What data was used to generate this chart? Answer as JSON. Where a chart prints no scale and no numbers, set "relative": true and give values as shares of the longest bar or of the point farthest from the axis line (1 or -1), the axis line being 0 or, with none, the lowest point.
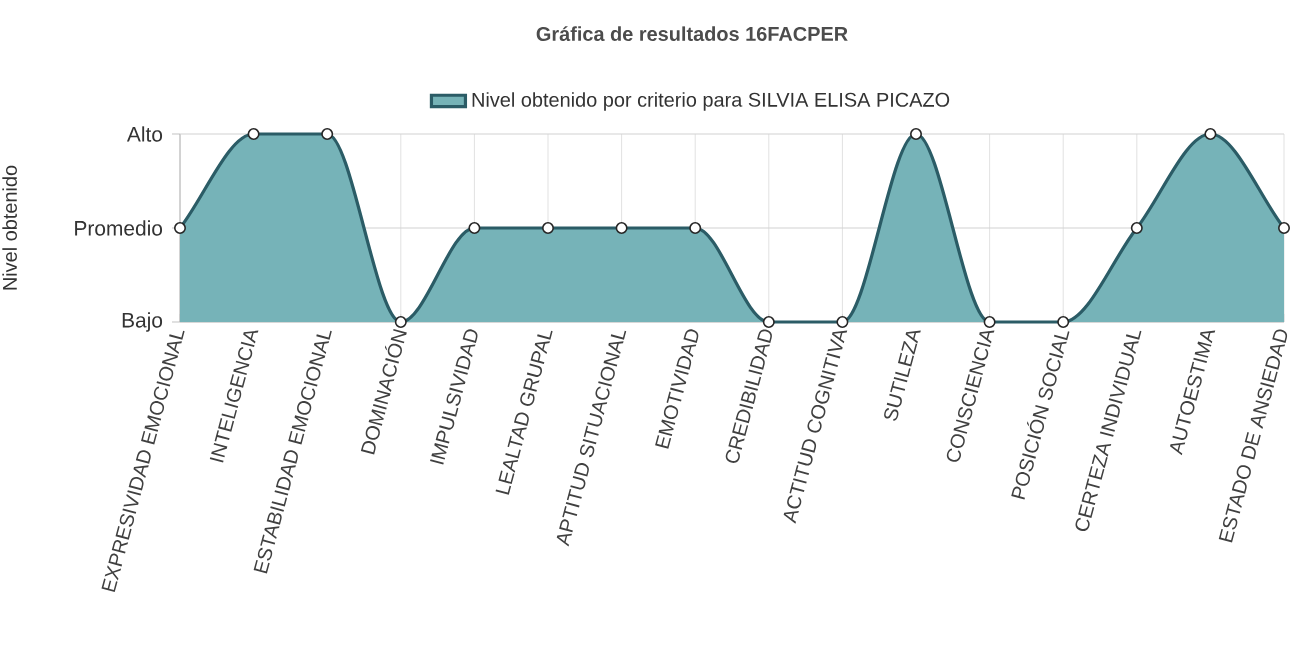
{
  "chart_data": {
    "type": "area",
    "title": "Gráfica de resultados 16FACPER",
    "ylabel": "Nivel obtenido",
    "categories": [
      "EXPRESIVIDAD EMOCIONAL",
      "INTELIGENCIA",
      "ESTABILIDAD EMOCIONAL",
      "DOMINACIÓN",
      "IMPULSIVIDAD",
      "LEALTAD GRUPAL",
      "APTITUD SITUACIONAL",
      "EMOTIVIDAD",
      "CREDIBILIDAD",
      "ACTITUD COGNITIVA",
      "SUTILEZA",
      "CONSCIENCIA",
      "POSICIÓN SOCIAL",
      "CERTEZA INDIVIDUAL",
      "AUTOESTIMA",
      "ESTADO DE ANSIEDAD"
    ],
    "series": [
      {
        "name": "Nivel obtenido por criterio para SILVIA ELISA PICAZO",
        "color": "#2b5c66",
        "values": [
          0.5,
          1,
          1,
          0,
          0.5,
          0.5,
          0.5,
          0.5,
          0,
          0,
          1,
          0,
          0,
          0.5,
          1,
          0.5
        ]
      }
    ],
    "relative": true,
    "ref_lines": [
      {
        "axis": "y",
        "value": 0,
        "label": "Bajo"
      },
      {
        "axis": "y",
        "value": 0.5,
        "label": "Promedio"
      },
      {
        "axis": "y",
        "value": 1,
        "label": "Alto"
      }
    ],
    "grid": true,
    "legend": "top",
    "marker": "circle"
  }
}
